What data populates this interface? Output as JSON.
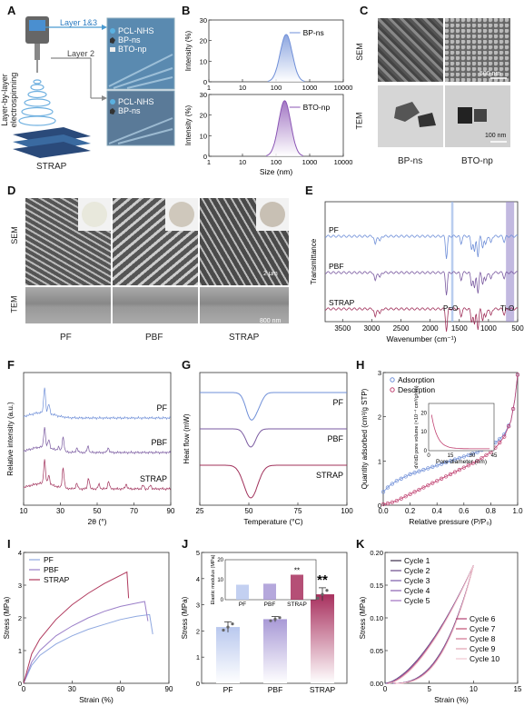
{
  "panel_labels": [
    "A",
    "B",
    "C",
    "D",
    "E",
    "F",
    "G",
    "H",
    "I",
    "J",
    "K"
  ],
  "panel_a": {
    "side_label": "Layer-by-layer electrospinning",
    "layer13": "Layer 1&3",
    "layer2": "Layer 2",
    "legend1": [
      "PCL-NHS",
      "BP-ns",
      "BTO-np"
    ],
    "legend2": [
      "PCL-NHS",
      "BP-ns"
    ],
    "caption": "STRAP"
  },
  "panel_c": {
    "row_sem": "SEM",
    "row_tem": "TEM",
    "scale_sem": "500 nm",
    "scale_tem": "100 nm",
    "col1": "BP-ns",
    "col2": "BTO-np"
  },
  "panel_d": {
    "row_sem": "SEM",
    "row_tem": "TEM",
    "scale_sem": "2 μm",
    "scale_tem": "800 nm",
    "cols": [
      "PF",
      "PBF",
      "STRAP"
    ]
  },
  "chart_data": [
    {
      "id": "B-top",
      "type": "area",
      "ylabel": "Intensity (%)",
      "xlabel": "",
      "xscale": "log",
      "xlim": [
        1,
        10000
      ],
      "ylim": [
        0,
        30
      ],
      "yticks": [
        0,
        10,
        20,
        30
      ],
      "xticks": [
        "1",
        "10",
        "100",
        "1000",
        "10000"
      ],
      "series": [
        {
          "name": "BP-ns",
          "peak_x": 200,
          "peak_y": 23,
          "color": "#6f8fd8"
        }
      ]
    },
    {
      "id": "B-bottom",
      "type": "area",
      "ylabel": "Intensity (%)",
      "xlabel": "Size (nm)",
      "xscale": "log",
      "xlim": [
        1,
        10000
      ],
      "ylim": [
        0,
        30
      ],
      "yticks": [
        0,
        10,
        20,
        30
      ],
      "xticks": [
        "1",
        "10",
        "100",
        "1000",
        "10000"
      ],
      "series": [
        {
          "name": "BTO-np",
          "peak_x": 180,
          "peak_y": 27,
          "color": "#8b55b5"
        }
      ]
    },
    {
      "id": "E",
      "type": "line",
      "ylabel": "Transmittance",
      "xlabel": "Wavenumber (cm⁻¹)",
      "xlim": [
        3800,
        500
      ],
      "xticks": [
        "3500",
        "3000",
        "2500",
        "2000",
        "1500",
        "1000",
        "500"
      ],
      "series": [
        {
          "name": "PF",
          "color": "#6f8fd8"
        },
        {
          "name": "PBF",
          "color": "#7a5aa0"
        },
        {
          "name": "STRAP",
          "color": "#a0305a"
        }
      ],
      "annotations": [
        "P=O",
        "Ti-O"
      ]
    },
    {
      "id": "F",
      "type": "line",
      "ylabel": "Relative intensity (a.u.)",
      "xlabel": "2θ (°)",
      "xlim": [
        10,
        90
      ],
      "xticks": [
        "10",
        "30",
        "50",
        "70",
        "90"
      ],
      "series": [
        {
          "name": "PF",
          "color": "#6f8fd8"
        },
        {
          "name": "PBF",
          "color": "#7a5aa0"
        },
        {
          "name": "STRAP",
          "color": "#a0305a"
        }
      ]
    },
    {
      "id": "G",
      "type": "line",
      "ylabel": "Heat flow (mW)",
      "xlabel": "Temperature (°C)",
      "xlim": [
        25,
        100
      ],
      "xticks": [
        "25",
        "50",
        "75",
        "100"
      ],
      "series": [
        {
          "name": "PF",
          "color": "#6f8fd8"
        },
        {
          "name": "PBF",
          "color": "#7a5aa0"
        },
        {
          "name": "STRAP",
          "color": "#a0305a"
        }
      ]
    },
    {
      "id": "H",
      "type": "line",
      "ylabel": "Quantity adsorbed (cm³/g STP)",
      "xlabel": "Relative pressure (P/P₀)",
      "xlim": [
        0,
        1
      ],
      "ylim": [
        0,
        3
      ],
      "xticks": [
        "0.0",
        "0.2",
        "0.4",
        "0.6",
        "0.8",
        "1.0"
      ],
      "yticks": [
        "0",
        "1",
        "2",
        "3"
      ],
      "series": [
        {
          "name": "Adsorption",
          "color": "#6f8fd8",
          "x": [
            0.0,
            0.05,
            0.1,
            0.2,
            0.3,
            0.4,
            0.5,
            0.6,
            0.7,
            0.8,
            0.85,
            0.9,
            0.95,
            0.98,
            1.0
          ],
          "y": [
            0.3,
            0.45,
            0.55,
            0.7,
            0.8,
            0.9,
            1.0,
            1.1,
            1.2,
            1.35,
            1.45,
            1.6,
            1.9,
            2.4,
            2.95
          ]
        },
        {
          "name": "Desorption",
          "color": "#c04070",
          "x": [
            0.0,
            0.05,
            0.1,
            0.2,
            0.3,
            0.4,
            0.5,
            0.6,
            0.7,
            0.8,
            0.85,
            0.9,
            0.95,
            0.98,
            1.0
          ],
          "y": [
            0.02,
            0.05,
            0.1,
            0.25,
            0.4,
            0.55,
            0.7,
            0.85,
            1.0,
            1.2,
            1.35,
            1.55,
            1.9,
            2.4,
            2.95
          ]
        }
      ],
      "inset": {
        "ylabel": "dV/dD pore volume (×10⁻⁴ cm³/g/nm)",
        "xlabel": "Pore diameter (nm)",
        "xticks": [
          "0",
          "15",
          "30",
          "45"
        ],
        "yticks": [
          "0",
          "10",
          "20"
        ]
      }
    },
    {
      "id": "I",
      "type": "line",
      "ylabel": "Stress (MPa)",
      "xlabel": "Strain (%)",
      "xlim": [
        0,
        90
      ],
      "ylim": [
        0,
        4
      ],
      "xticks": [
        "0",
        "30",
        "60",
        "90"
      ],
      "yticks": [
        "0",
        "1",
        "2",
        "3",
        "4"
      ],
      "series": [
        {
          "name": "PF",
          "color": "#8fa8e0",
          "x": [
            0,
            5,
            10,
            20,
            30,
            40,
            50,
            60,
            70,
            78,
            80
          ],
          "y": [
            0,
            0.55,
            0.85,
            1.2,
            1.45,
            1.65,
            1.8,
            1.95,
            2.05,
            2.1,
            1.5
          ]
        },
        {
          "name": "PBF",
          "color": "#9a7ec8",
          "x": [
            0,
            5,
            10,
            20,
            30,
            40,
            50,
            60,
            70,
            75,
            77
          ],
          "y": [
            0,
            0.65,
            1.0,
            1.45,
            1.75,
            2.0,
            2.2,
            2.35,
            2.45,
            2.5,
            1.9
          ]
        },
        {
          "name": "STRAP",
          "color": "#b03a5e",
          "x": [
            0,
            5,
            10,
            20,
            30,
            40,
            50,
            60,
            64,
            65
          ],
          "y": [
            0,
            0.9,
            1.35,
            1.95,
            2.4,
            2.75,
            3.05,
            3.3,
            3.4,
            2.6
          ]
        }
      ]
    },
    {
      "id": "J",
      "type": "bar",
      "ylabel": "Stress (MPa)",
      "xlabel": "",
      "categories": [
        "PF",
        "PBF",
        "STRAP"
      ],
      "values": [
        2.15,
        2.45,
        3.4
      ],
      "errors": [
        0.2,
        0.1,
        0.25
      ],
      "ylim": [
        0,
        5
      ],
      "yticks": [
        "0",
        "1",
        "2",
        "3",
        "4",
        "5"
      ],
      "significance": "**",
      "inset": {
        "ylabel": "Elastic modulus (MPa)",
        "categories": [
          "PF",
          "PBF",
          "STRAP"
        ],
        "values": [
          7.5,
          8.0,
          12.5
        ],
        "ylim": [
          0,
          20
        ],
        "yticks": [
          "0",
          "10",
          "20"
        ],
        "significance": "**"
      }
    },
    {
      "id": "K",
      "type": "line",
      "ylabel": "Stress (MPa)",
      "xlabel": "Strain (%)",
      "xlim": [
        0,
        15
      ],
      "ylim": [
        0,
        0.2
      ],
      "xticks": [
        "0",
        "5",
        "10",
        "15"
      ],
      "yticks": [
        "0.00",
        "0.05",
        "0.10",
        "0.15",
        "0.20"
      ],
      "series": [
        {
          "name": "Cycle 1",
          "color": "#3a2a4a"
        },
        {
          "name": "Cycle 2",
          "color": "#6a4a8a"
        },
        {
          "name": "Cycle 3",
          "color": "#7a5aa8"
        },
        {
          "name": "Cycle 4",
          "color": "#8a60b0"
        },
        {
          "name": "Cycle 5",
          "color": "#a070c0"
        },
        {
          "name": "Cycle 6",
          "color": "#b04070"
        },
        {
          "name": "Cycle 7",
          "color": "#c05070"
        },
        {
          "name": "Cycle 8",
          "color": "#d07090"
        },
        {
          "name": "Cycle 9",
          "color": "#e0a0b0"
        },
        {
          "name": "Cycle 10",
          "color": "#f0c8d0"
        }
      ]
    }
  ]
}
